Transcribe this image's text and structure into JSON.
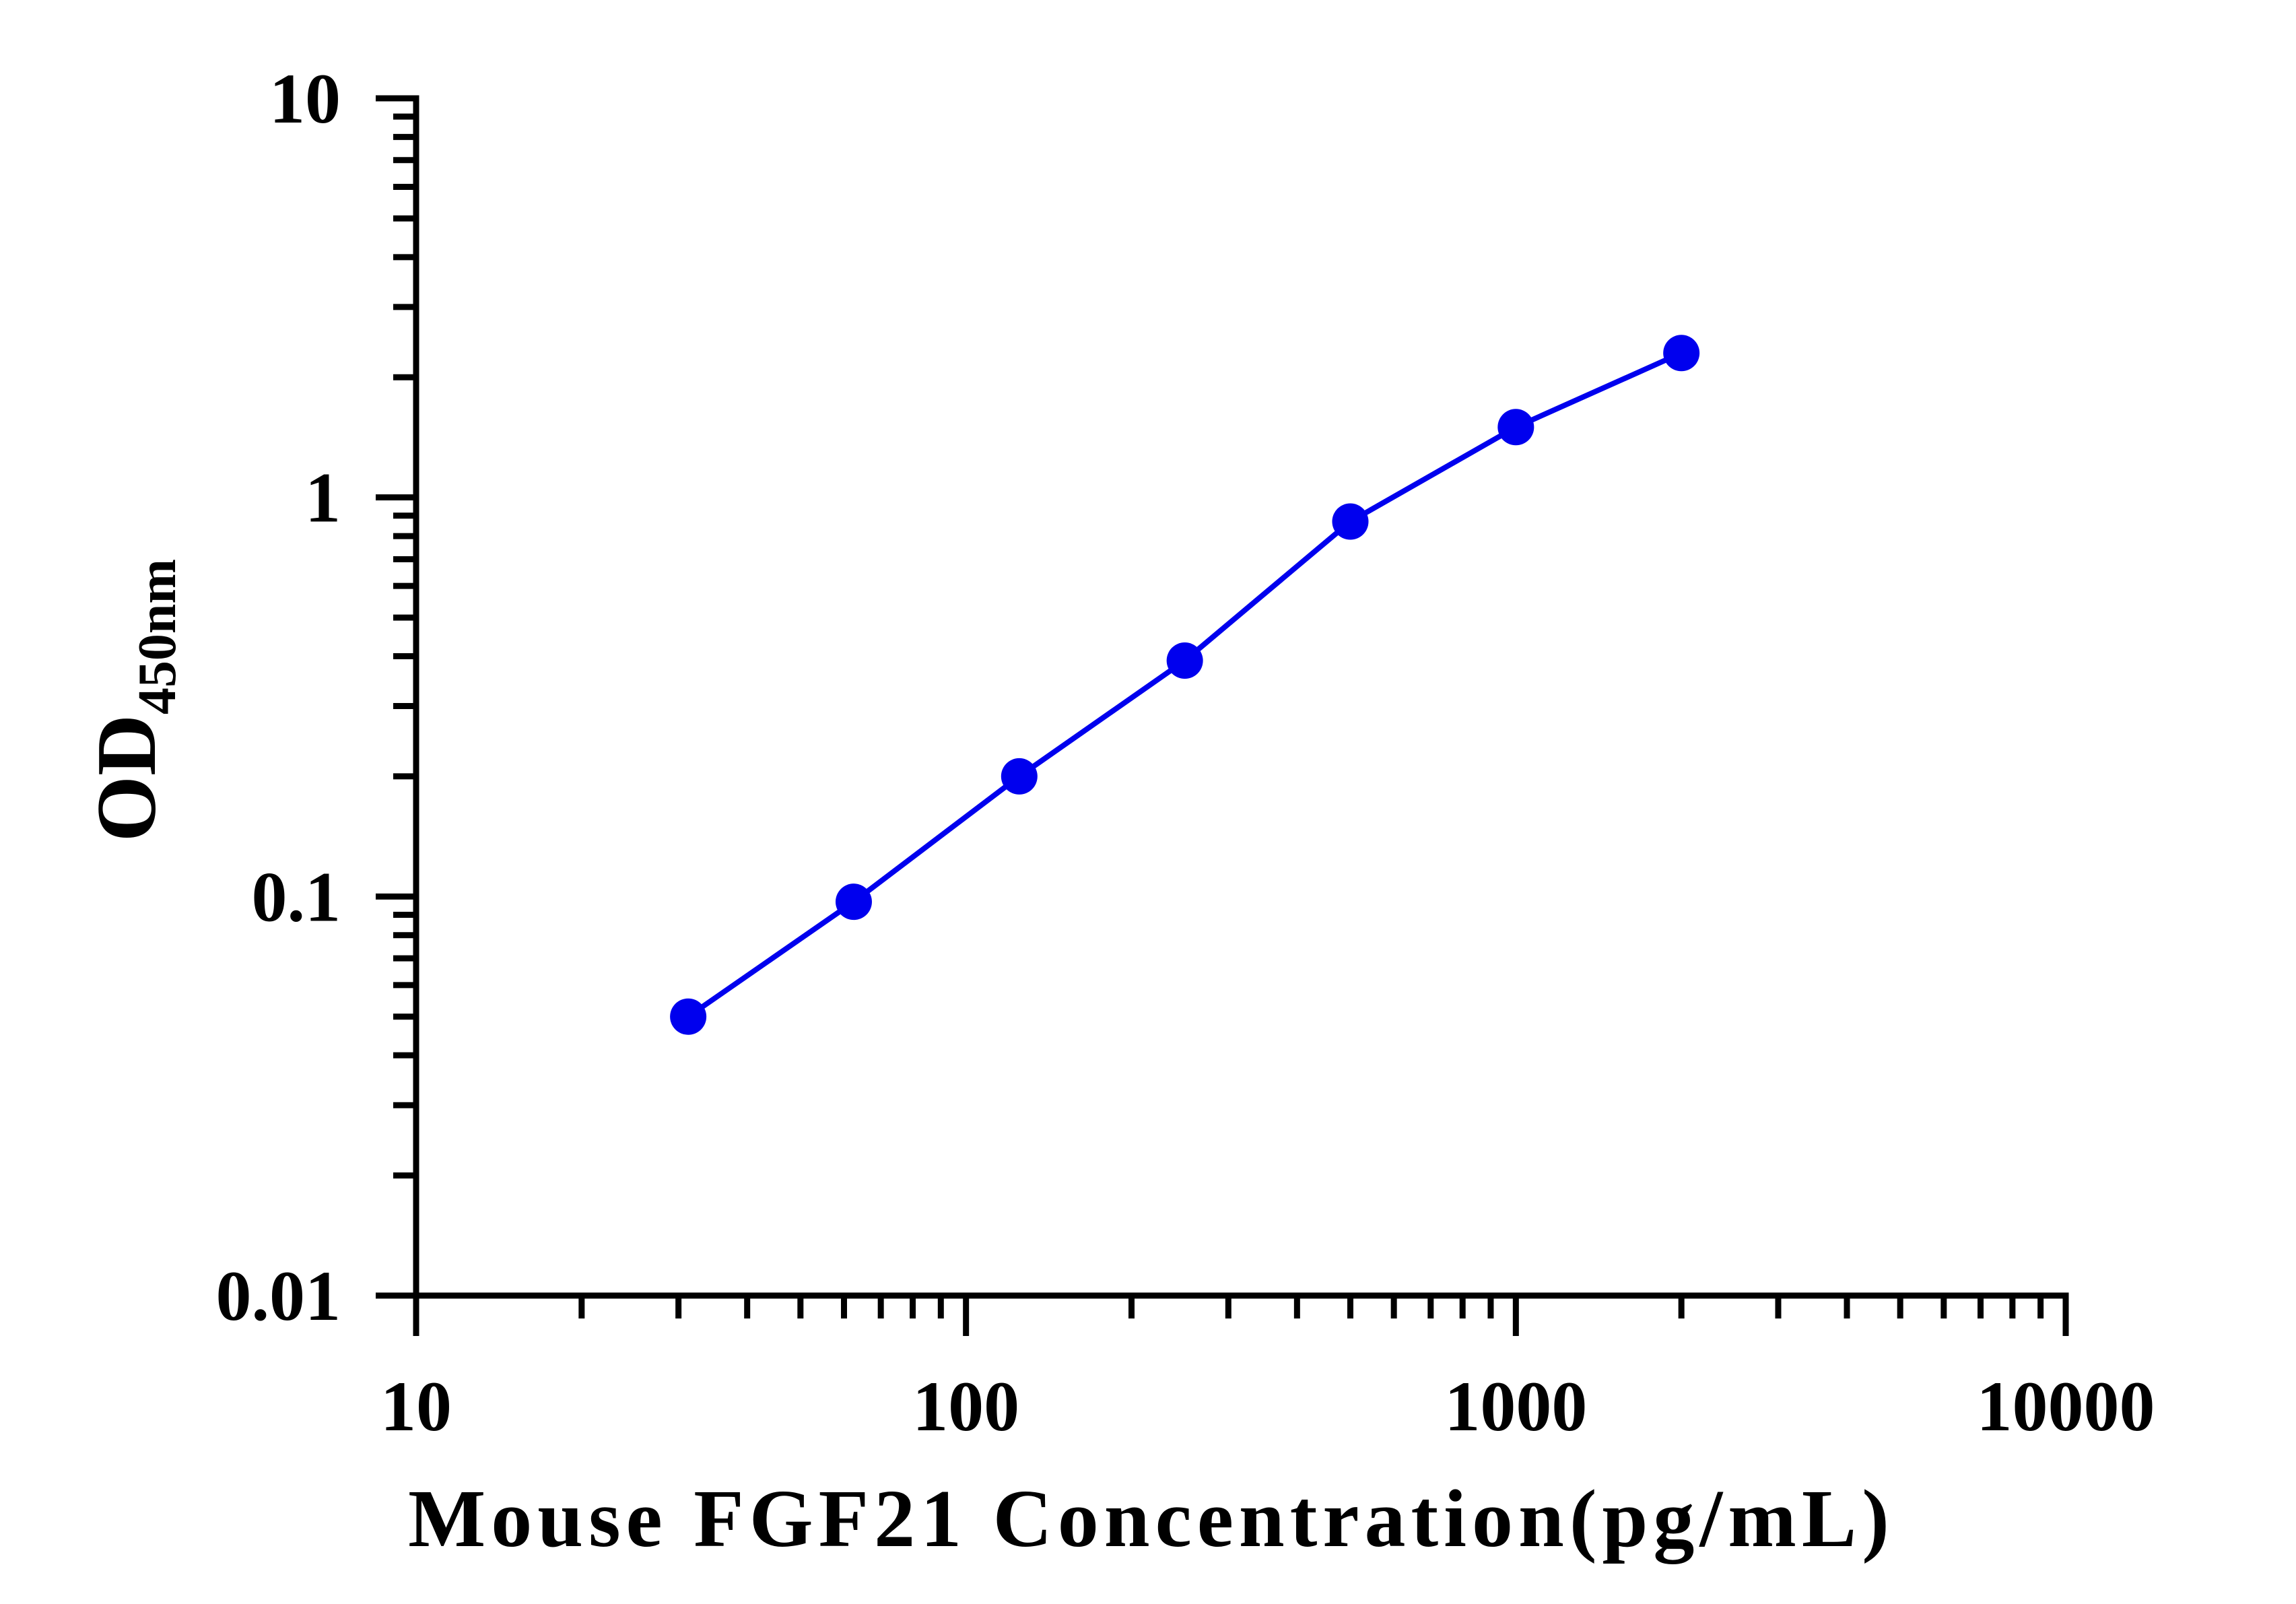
{
  "chart_data": {
    "type": "line",
    "title": "",
    "xlabel": "Mouse FGF21 Concentration(pg/mL)",
    "ylabel": {
      "main": "OD",
      "subscript": "450nm"
    },
    "xscale": "log",
    "yscale": "log",
    "xlim": [
      10,
      10000
    ],
    "ylim": [
      0.01,
      10
    ],
    "x_ticks": [
      {
        "value": 10,
        "label": "10"
      },
      {
        "value": 100,
        "label": "100"
      },
      {
        "value": 1000,
        "label": "1000"
      },
      {
        "value": 10000,
        "label": "10000"
      }
    ],
    "y_ticks": [
      {
        "value": 0.01,
        "label": "0.01"
      },
      {
        "value": 0.1,
        "label": "0.1"
      },
      {
        "value": 1,
        "label": "1"
      },
      {
        "value": 10,
        "label": "10"
      }
    ],
    "grid": false,
    "legend": "none",
    "series": [
      {
        "color": "#0000ee",
        "x": [
          31.25,
          62.5,
          125,
          250,
          500,
          1000,
          2000
        ],
        "y": [
          0.05,
          0.097,
          0.2,
          0.39,
          0.87,
          1.5,
          2.3
        ]
      }
    ]
  }
}
